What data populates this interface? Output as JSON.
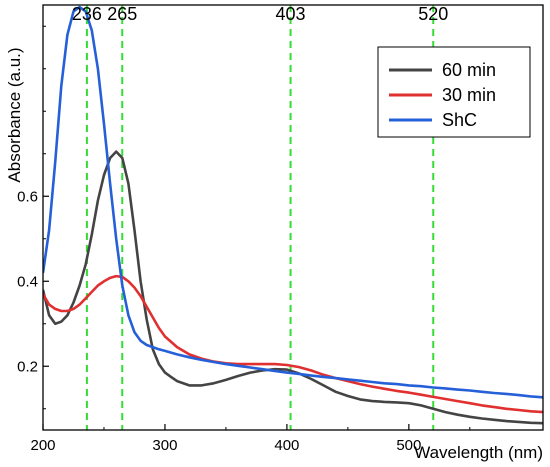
{
  "chart_data": {
    "type": "line",
    "title": "",
    "xlabel": "Wavelength (nm)",
    "ylabel": "Absorbance (a.u.)",
    "xlim": [
      200,
      610
    ],
    "ylim": [
      0.05,
      1.05
    ],
    "x_ticks": [
      200,
      300,
      400,
      500
    ],
    "y_ticks": [
      0.2,
      0.4,
      0.6
    ],
    "grid": false,
    "legend_position": "top-right",
    "reference_lines": [
      {
        "x": 236,
        "label": "236",
        "color": "#33dd33"
      },
      {
        "x": 265,
        "label": "265",
        "color": "#33dd33"
      },
      {
        "x": 403,
        "label": "403",
        "color": "#33dd33"
      },
      {
        "x": 520,
        "label": "520",
        "color": "#33dd33"
      }
    ],
    "series": [
      {
        "name": "60 min",
        "color": "#444444",
        "x": [
          200,
          205,
          210,
          215,
          220,
          225,
          230,
          235,
          240,
          245,
          250,
          255,
          260,
          265,
          270,
          275,
          280,
          285,
          290,
          295,
          300,
          305,
          310,
          320,
          330,
          340,
          350,
          360,
          370,
          380,
          390,
          400,
          410,
          420,
          430,
          440,
          450,
          460,
          470,
          480,
          490,
          500,
          510,
          520,
          530,
          540,
          550,
          560,
          570,
          580,
          590,
          600,
          610
        ],
        "y": [
          0.38,
          0.32,
          0.3,
          0.305,
          0.32,
          0.35,
          0.39,
          0.44,
          0.51,
          0.59,
          0.65,
          0.69,
          0.705,
          0.69,
          0.63,
          0.52,
          0.4,
          0.31,
          0.24,
          0.205,
          0.185,
          0.175,
          0.165,
          0.155,
          0.155,
          0.16,
          0.168,
          0.177,
          0.185,
          0.19,
          0.193,
          0.192,
          0.183,
          0.17,
          0.155,
          0.14,
          0.13,
          0.122,
          0.118,
          0.116,
          0.115,
          0.113,
          0.108,
          0.1,
          0.092,
          0.086,
          0.081,
          0.077,
          0.074,
          0.071,
          0.069,
          0.067,
          0.066
        ]
      },
      {
        "name": "30 min",
        "color": "#e03030",
        "x": [
          200,
          205,
          210,
          215,
          220,
          225,
          230,
          235,
          240,
          245,
          250,
          255,
          260,
          265,
          270,
          275,
          280,
          285,
          290,
          295,
          300,
          310,
          320,
          330,
          340,
          350,
          360,
          370,
          380,
          390,
          400,
          410,
          420,
          430,
          440,
          450,
          460,
          470,
          480,
          490,
          500,
          510,
          520,
          530,
          540,
          550,
          560,
          570,
          580,
          590,
          600,
          610
        ],
        "y": [
          0.37,
          0.345,
          0.335,
          0.33,
          0.33,
          0.335,
          0.345,
          0.36,
          0.375,
          0.39,
          0.4,
          0.408,
          0.412,
          0.41,
          0.4,
          0.385,
          0.365,
          0.34,
          0.315,
          0.29,
          0.27,
          0.245,
          0.228,
          0.218,
          0.211,
          0.207,
          0.205,
          0.205,
          0.205,
          0.205,
          0.203,
          0.198,
          0.19,
          0.18,
          0.172,
          0.165,
          0.158,
          0.152,
          0.147,
          0.142,
          0.138,
          0.133,
          0.128,
          0.123,
          0.118,
          0.113,
          0.108,
          0.104,
          0.1,
          0.097,
          0.094,
          0.092
        ]
      },
      {
        "name": "ShC",
        "color": "#2560d8",
        "x": [
          200,
          205,
          210,
          215,
          220,
          225,
          230,
          235,
          240,
          245,
          250,
          255,
          260,
          265,
          270,
          275,
          280,
          285,
          290,
          295,
          300,
          310,
          320,
          330,
          340,
          350,
          360,
          370,
          380,
          390,
          400,
          410,
          420,
          430,
          440,
          450,
          460,
          470,
          480,
          490,
          500,
          510,
          520,
          530,
          540,
          550,
          560,
          570,
          580,
          590,
          600,
          610
        ],
        "y": [
          0.42,
          0.52,
          0.68,
          0.86,
          0.98,
          1.035,
          1.045,
          1.035,
          0.99,
          0.9,
          0.77,
          0.63,
          0.5,
          0.39,
          0.32,
          0.28,
          0.26,
          0.25,
          0.245,
          0.24,
          0.236,
          0.228,
          0.221,
          0.215,
          0.21,
          0.205,
          0.201,
          0.197,
          0.193,
          0.189,
          0.185,
          0.182,
          0.178,
          0.175,
          0.172,
          0.169,
          0.166,
          0.163,
          0.16,
          0.158,
          0.155,
          0.153,
          0.15,
          0.148,
          0.145,
          0.143,
          0.14,
          0.137,
          0.135,
          0.132,
          0.129,
          0.127
        ]
      }
    ]
  }
}
